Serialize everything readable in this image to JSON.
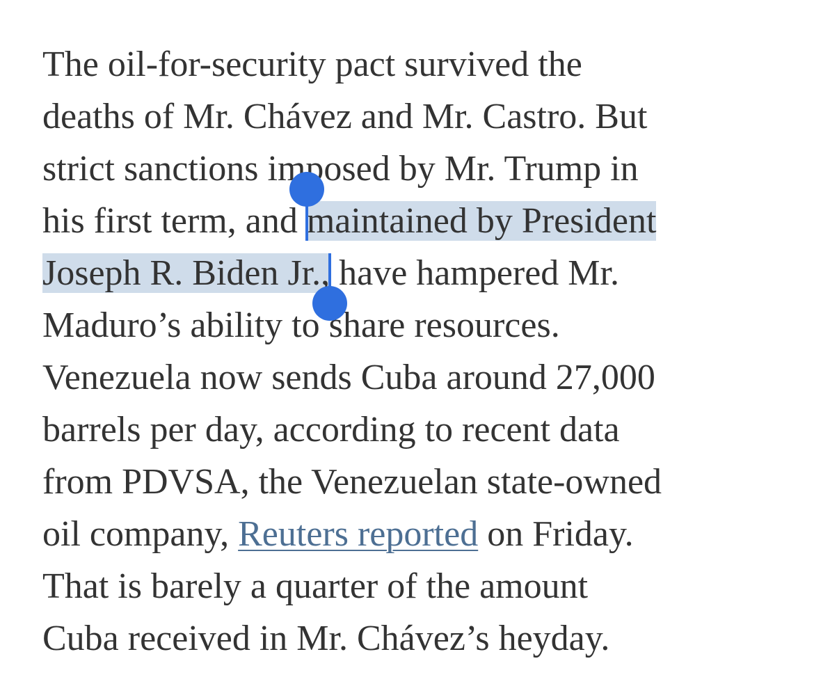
{
  "article": {
    "lines": [
      {
        "before": "The oil-for-security pact survived the"
      },
      {
        "before": "deaths of Mr. Chávez and Mr. Castro. But"
      },
      {
        "before": "strict sanctions imposed by Mr. Trump in"
      },
      {
        "before": "his first term, and ",
        "selected": "maintained by President"
      },
      {
        "selected": "Joseph R. Biden Jr.,",
        "after": " have hampered Mr."
      },
      {
        "before": "Maduro’s ability to share resources."
      },
      {
        "before": "Venezuela now sends Cuba around 27,000"
      },
      {
        "before": "barrels per day, according to recent data"
      },
      {
        "before": "from PDVSA, the Venezuelan state-owned"
      },
      {
        "before": "oil company, ",
        "link": "Reuters reported",
        "after": " on Friday."
      },
      {
        "before": "That is barely a quarter of the amount"
      },
      {
        "before": "Cuba received in Mr. Chávez’s heyday."
      }
    ]
  },
  "colors": {
    "text": "#333333",
    "selection": "#cfdcea",
    "handle": "#2f6fdf",
    "link": "#4d6f93"
  }
}
